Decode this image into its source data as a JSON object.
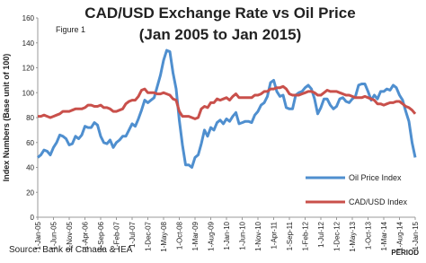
{
  "chart_data": {
    "type": "line",
    "title": "CAD/USD Exchange Rate vs Oil Price",
    "subtitle": "(Jan 2005 to Jan 2015)",
    "annotation": "Figure 1",
    "y_label": "Index Numbers (Base unit of 100)",
    "x_label": "PERIOD",
    "source": "Source: Bank of Canada & IEA",
    "categories": [
      "1-Jan-05",
      null,
      null,
      null,
      null,
      "1-Jun-05",
      null,
      null,
      null,
      null,
      "1-Nov-05",
      null,
      null,
      null,
      null,
      "1-Apr-06",
      null,
      null,
      null,
      null,
      "1-Sep-06",
      null,
      null,
      null,
      null,
      "1-Feb-07",
      null,
      null,
      null,
      null,
      "1-Jul-07",
      null,
      null,
      null,
      null,
      "1-Dec-07",
      null,
      null,
      null,
      null,
      "1-May-08",
      null,
      null,
      null,
      null,
      "1-Oct-08",
      null,
      null,
      null,
      null,
      "1-Mar-09",
      null,
      null,
      null,
      null,
      "1-Aug-09",
      null,
      null,
      null,
      null,
      "1-Jan-10",
      null,
      null,
      null,
      null,
      "1-Jun-10",
      null,
      null,
      null,
      null,
      "1-Nov-10",
      null,
      null,
      null,
      null,
      "1-Apr-11",
      null,
      null,
      null,
      null,
      "1-Sep-11",
      null,
      null,
      null,
      null,
      "1-Feb-12",
      null,
      null,
      null,
      null,
      "1-Jul-12",
      null,
      null,
      null,
      null,
      "1-Dec-12",
      null,
      null,
      null,
      null,
      "1-May-13",
      null,
      null,
      null,
      null,
      "1-Oct-13",
      null,
      null,
      null,
      null,
      "1-Mar-14",
      null,
      null,
      null,
      null,
      "1-Aug-14",
      null,
      null,
      null,
      null,
      "1-Jan-15"
    ],
    "series": [
      {
        "name": "Oil Price Index",
        "color": "#4f8fcf",
        "values": [
          48,
          50,
          54,
          53,
          50,
          56,
          60,
          66,
          65,
          63,
          58,
          59,
          65,
          63,
          66,
          73,
          72,
          72,
          76,
          74,
          65,
          60,
          59,
          62,
          56,
          60,
          62,
          65,
          65,
          70,
          75,
          73,
          79,
          86,
          94,
          92,
          94,
          96,
          105,
          114,
          126,
          134,
          133,
          116,
          103,
          78,
          58,
          42,
          42,
          40,
          48,
          50,
          59,
          70,
          65,
          72,
          70,
          76,
          78,
          75,
          79,
          77,
          81,
          84,
          75,
          76,
          77,
          77,
          76,
          82,
          85,
          90,
          92,
          97,
          108,
          110,
          101,
          97,
          98,
          88,
          87,
          87,
          98,
          100,
          101,
          104,
          106,
          103,
          95,
          83,
          88,
          95,
          95,
          90,
          87,
          89,
          95,
          96,
          93,
          92,
          95,
          97,
          106,
          107,
          107,
          101,
          94,
          98,
          95,
          101,
          101,
          103,
          102,
          106,
          104,
          98,
          94,
          85,
          77,
          60,
          48
        ]
      },
      {
        "name": "CAD/USD Index",
        "color": "#c9504b",
        "values": [
          81,
          81,
          82,
          81,
          80,
          81,
          82,
          83,
          85,
          85,
          85,
          86,
          87,
          87,
          87,
          88,
          90,
          90,
          89,
          89,
          90,
          88,
          88,
          87,
          85,
          85,
          86,
          87,
          91,
          93,
          94,
          94,
          97,
          102,
          103,
          100,
          100,
          100,
          99,
          99,
          100,
          99,
          98,
          95,
          94,
          85,
          81,
          81,
          81,
          80,
          79,
          80,
          87,
          89,
          88,
          92,
          92,
          95,
          94,
          95,
          96,
          94,
          97,
          99,
          96,
          96,
          96,
          96,
          96,
          98,
          98,
          99,
          101,
          101,
          103,
          103,
          104,
          104,
          105,
          103,
          99,
          98,
          98,
          98,
          99,
          100,
          101,
          101,
          100,
          98,
          98,
          100,
          102,
          101,
          101,
          101,
          100,
          99,
          98,
          98,
          97,
          96,
          96,
          96,
          97,
          96,
          95,
          94,
          91,
          91,
          90,
          91,
          92,
          92,
          93,
          93,
          91,
          89,
          88,
          86,
          83
        ]
      }
    ],
    "ylim": [
      0,
      160
    ],
    "yticks": [
      0,
      20,
      40,
      60,
      80,
      100,
      120,
      140,
      160
    ],
    "grid": false,
    "legend": "lower right"
  }
}
